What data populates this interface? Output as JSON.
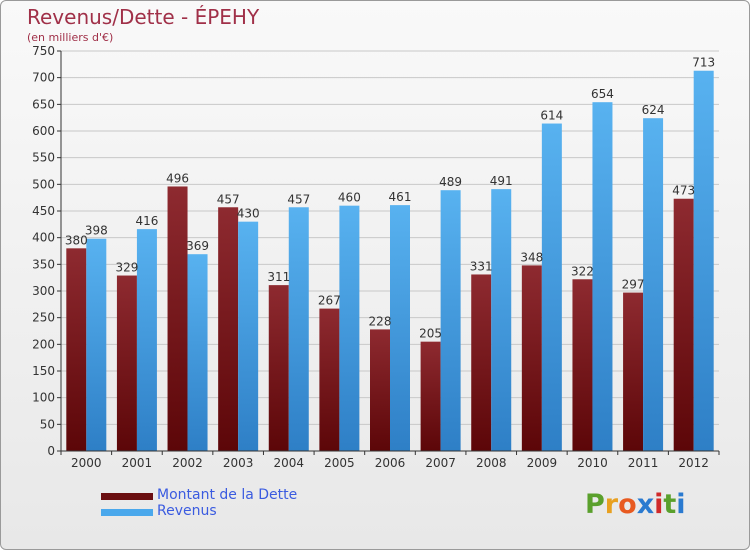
{
  "chart_data": {
    "type": "bar",
    "title": "Revenus/Dette - ÉPEHY",
    "subtitle": "(en milliers d'€)",
    "categories": [
      "2000",
      "2001",
      "2002",
      "2003",
      "2004",
      "2005",
      "2006",
      "2007",
      "2008",
      "2009",
      "2010",
      "2011",
      "2012"
    ],
    "series": [
      {
        "name": "Montant de la Dette",
        "color": "#7a1418",
        "values": [
          380,
          329,
          496,
          457,
          311,
          267,
          228,
          205,
          331,
          348,
          322,
          297,
          473
        ]
      },
      {
        "name": "Revenus",
        "color": "#4aa8ec",
        "values": [
          398,
          416,
          369,
          430,
          457,
          460,
          461,
          489,
          491,
          614,
          654,
          624,
          713
        ]
      }
    ],
    "yticks": [
      0,
      50,
      100,
      150,
      200,
      250,
      300,
      350,
      400,
      450,
      500,
      550,
      600,
      650,
      700,
      750
    ],
    "ylim": [
      0,
      750
    ],
    "grid": true,
    "legend_position": "bottom-left"
  },
  "logo": {
    "letters": [
      "P",
      "r",
      "o",
      "x",
      "i",
      "t",
      "i"
    ],
    "colors": [
      "#5aa02c",
      "#e8a020",
      "#e85a20",
      "#2a7ad0",
      "#d02a2a",
      "#5aa02c",
      "#2a7ad0"
    ]
  }
}
